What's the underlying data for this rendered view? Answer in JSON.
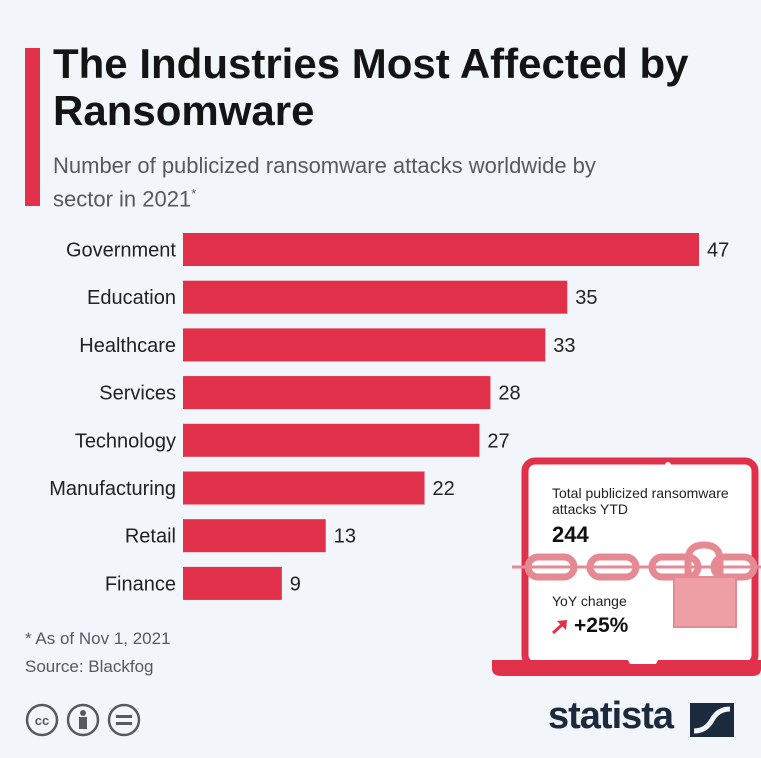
{
  "header": {
    "title": "The Industries Most Affected by Ransomware",
    "subtitle": "Number of publicized ransomware attacks worldwide by sector in 2021",
    "subtitle_mark": "*"
  },
  "chart_data": {
    "type": "bar",
    "orientation": "horizontal",
    "title": "The Industries Most Affected by Ransomware",
    "subtitle": "Number of publicized ransomware attacks worldwide by sector in 2021*",
    "categories": [
      "Government",
      "Education",
      "Healthcare",
      "Services",
      "Technology",
      "Manufacturing",
      "Retail",
      "Finance"
    ],
    "values": [
      47,
      35,
      33,
      28,
      27,
      22,
      13,
      9
    ],
    "xlim": [
      0,
      47
    ],
    "grid": false,
    "bar_color": "#e0304a",
    "data_labels": true
  },
  "callout": {
    "total_label": "Total publicized ransomware attacks YTD",
    "total_value": "244",
    "yoy_label": "YoY change",
    "yoy_value": "+25%",
    "yoy_direction": "up-arrow-icon",
    "accent_color": "#e0304a"
  },
  "footer": {
    "note": "* As of Nov 1, 2021",
    "source": "Source: Blackfog",
    "license_icons": [
      "cc-icon",
      "by-icon",
      "nd-icon"
    ],
    "brand": "statista"
  }
}
